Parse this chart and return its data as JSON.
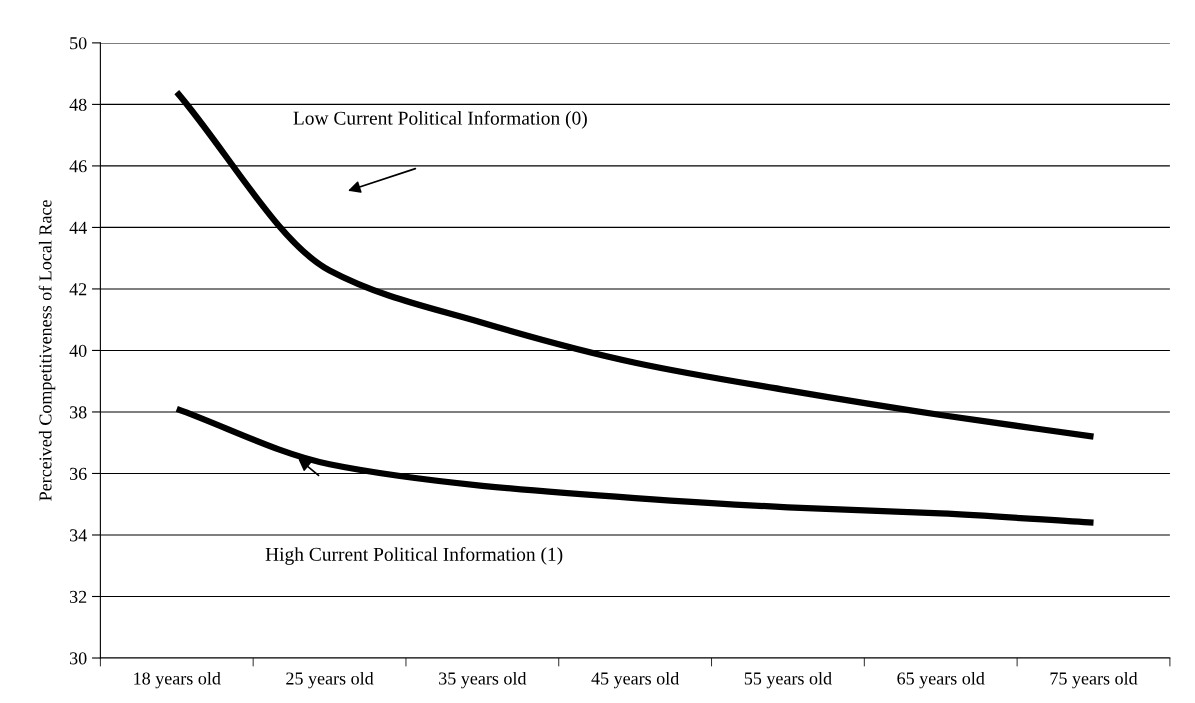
{
  "chart_data": {
    "type": "line",
    "ylabel": "Perceived Competitiveness of Local Race",
    "categories": [
      "18 years old",
      "25 years old",
      "35 years old",
      "45 years old",
      "55 years old",
      "65 years old",
      "75 years old"
    ],
    "series": [
      {
        "color": "#000000",
        "values": [
          48.4,
          42.6,
          40.9,
          39.6,
          38.7,
          37.9,
          37.2
        ]
      },
      {
        "color": "#000000",
        "values": [
          38.1,
          36.3,
          35.6,
          35.2,
          34.9,
          34.7,
          34.4
        ]
      }
    ],
    "annotations": [
      "Low Current Political Information (0)",
      "High Current Political Information (1)"
    ],
    "ylim": [
      30,
      50
    ],
    "yticks": [
      30,
      32,
      34,
      36,
      38,
      40,
      42,
      44,
      46,
      48,
      50
    ],
    "grid": "y",
    "legend": false,
    "marker": "none",
    "line_style": "solid"
  }
}
